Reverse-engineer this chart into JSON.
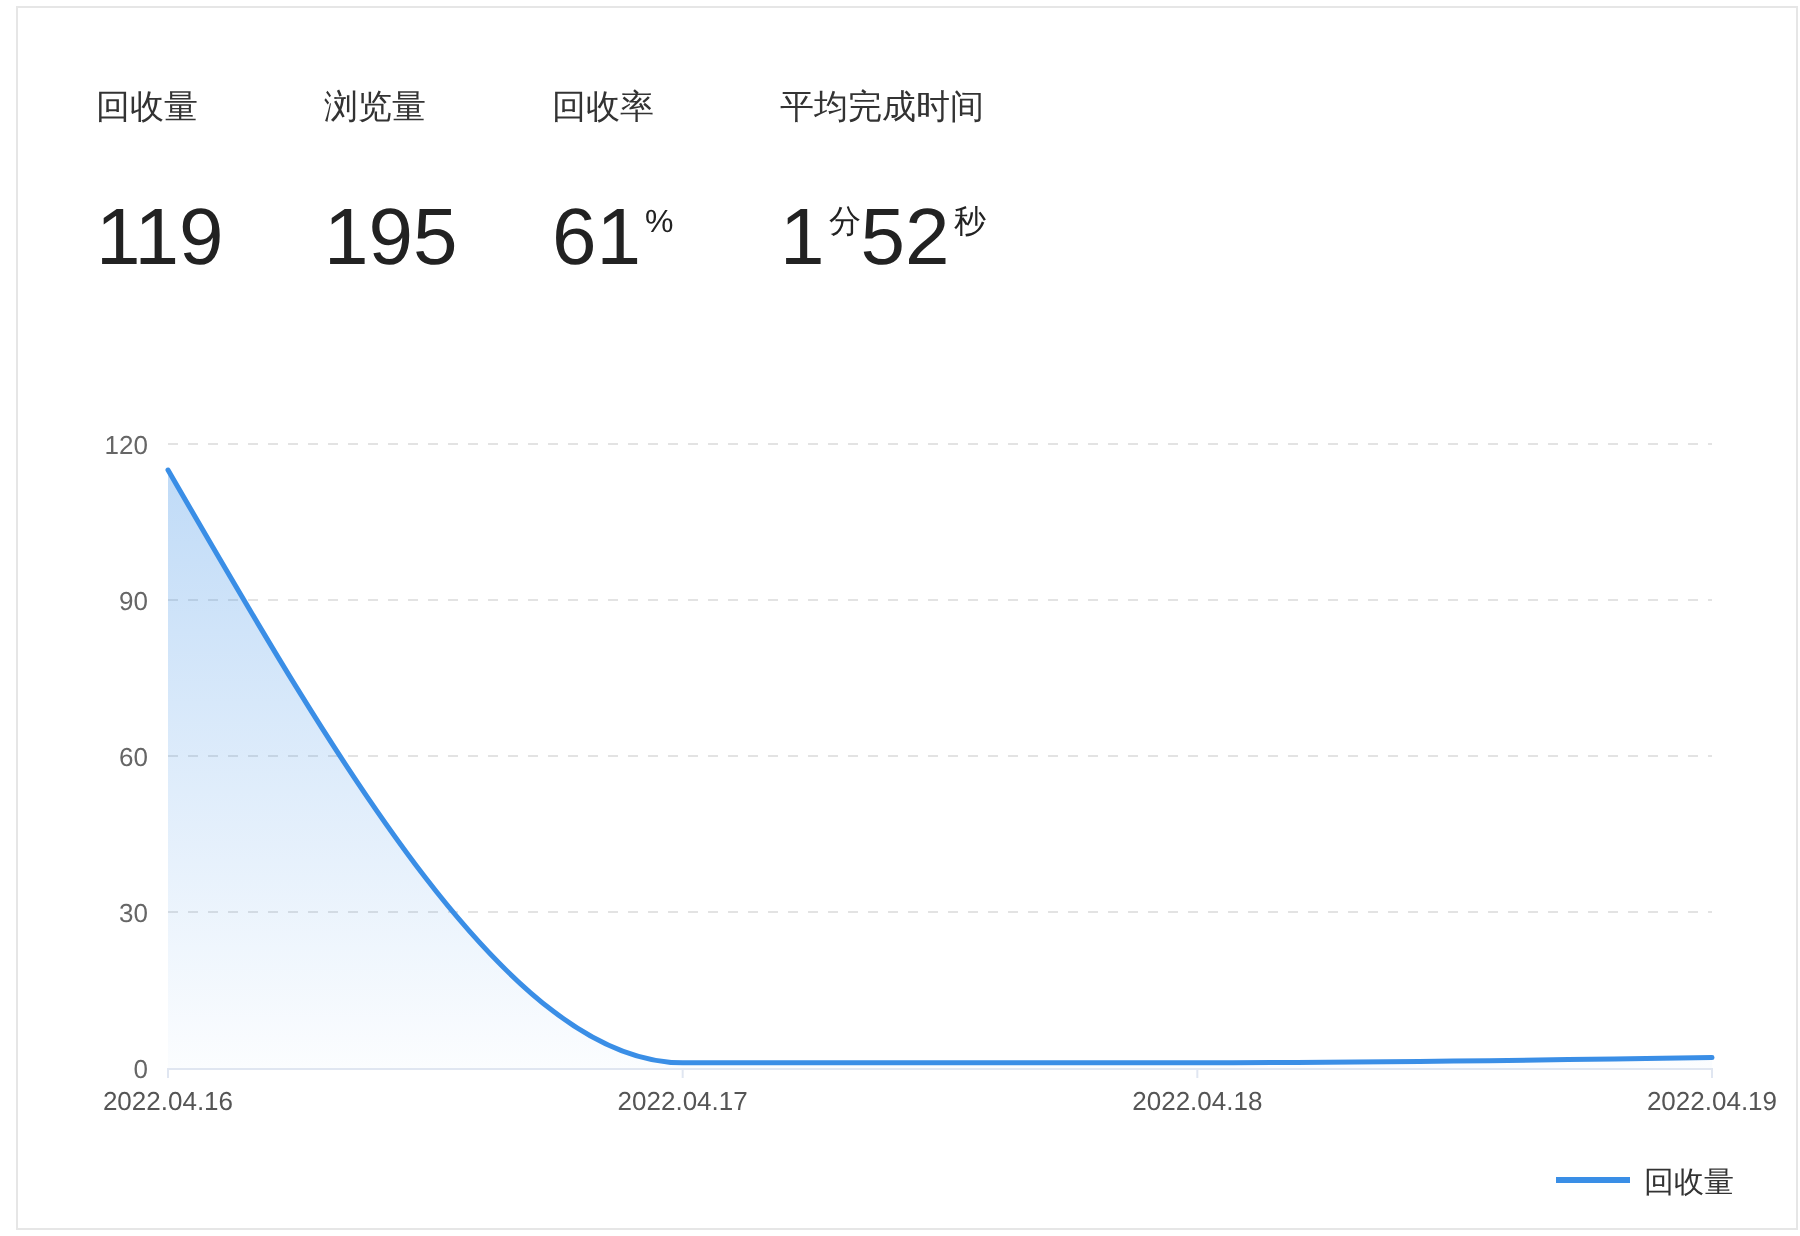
{
  "chart_data": [
    {
      "type": "other",
      "annotations": [
        "回收量",
        "119",
        "浏览量",
        "195",
        "回收率",
        "61%",
        "平均完成时间",
        "1分52秒"
      ]
    },
    {
      "type": "area",
      "categories": [
        "2022.04.16",
        "2022.04.17",
        "2022.04.18",
        "2022.04.19"
      ],
      "series": [
        {
          "name": "回收量",
          "color": "#3a8ee6",
          "values": [
            115,
            1,
            1,
            2
          ]
        }
      ],
      "ylim": [
        0,
        120
      ],
      "yticks": [
        0,
        30,
        60,
        90,
        120
      ],
      "grid": "y",
      "legend": "bottom right"
    }
  ]
}
